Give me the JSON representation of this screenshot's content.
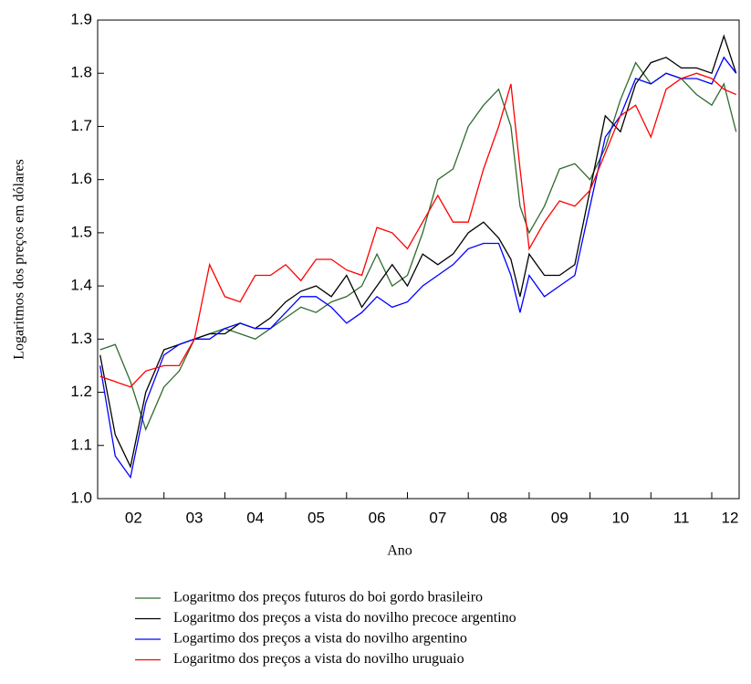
{
  "chart_data": {
    "type": "line",
    "xlabel": "Ano",
    "ylabel": "Logaritmos dos preços em dólares",
    "xlim": [
      1.91,
      12.45
    ],
    "xtick_marks": [
      3,
      4,
      5,
      6,
      7,
      8,
      9,
      10,
      11,
      12
    ],
    "xticks": [
      {
        "value": 2.5,
        "label": "02"
      },
      {
        "value": 3.5,
        "label": "03"
      },
      {
        "value": 4.5,
        "label": "04"
      },
      {
        "value": 5.5,
        "label": "05"
      },
      {
        "value": 6.5,
        "label": "06"
      },
      {
        "value": 7.5,
        "label": "07"
      },
      {
        "value": 8.5,
        "label": "08"
      },
      {
        "value": 9.5,
        "label": "09"
      },
      {
        "value": 10.5,
        "label": "10"
      },
      {
        "value": 11.5,
        "label": "11"
      },
      {
        "value": 12.3,
        "label": "12"
      }
    ],
    "ylim": [
      1,
      1.9
    ],
    "yticks": [
      {
        "value": 1,
        "label": "1.0"
      },
      1.1,
      1.2,
      1.3,
      1.4,
      1.5,
      1.6,
      1.7,
      1.8,
      1.9
    ],
    "x": [
      1.95,
      2.2,
      2.45,
      2.7,
      3.0,
      3.25,
      3.5,
      3.75,
      4.0,
      4.25,
      4.5,
      4.75,
      5.0,
      5.25,
      5.5,
      5.75,
      6.0,
      6.25,
      6.5,
      6.75,
      7.0,
      7.25,
      7.5,
      7.75,
      8.0,
      8.25,
      8.5,
      8.7,
      8.85,
      9.0,
      9.25,
      9.5,
      9.75,
      10.0,
      10.25,
      10.5,
      10.75,
      11.0,
      11.25,
      11.5,
      11.75,
      12.0,
      12.2,
      12.4
    ],
    "series": [
      {
        "name": "Logaritmo dos preços futuros do boi gordo brasileiro",
        "color": "#2e6b2e",
        "values": [
          1.28,
          1.29,
          1.22,
          1.13,
          1.21,
          1.24,
          1.3,
          1.31,
          1.32,
          1.31,
          1.3,
          1.32,
          1.34,
          1.36,
          1.35,
          1.37,
          1.38,
          1.4,
          1.46,
          1.4,
          1.42,
          1.5,
          1.6,
          1.62,
          1.7,
          1.74,
          1.77,
          1.7,
          1.55,
          1.5,
          1.55,
          1.62,
          1.63,
          1.6,
          1.66,
          1.75,
          1.82,
          1.78,
          1.8,
          1.79,
          1.76,
          1.74,
          1.78,
          1.69
        ]
      },
      {
        "name": "Logaritmo dos preços a vista do novilho precoce argentino",
        "color": "#000000",
        "values": [
          1.27,
          1.12,
          1.06,
          1.2,
          1.28,
          1.29,
          1.3,
          1.31,
          1.31,
          1.33,
          1.32,
          1.34,
          1.37,
          1.39,
          1.4,
          1.38,
          1.42,
          1.36,
          1.4,
          1.44,
          1.4,
          1.46,
          1.44,
          1.46,
          1.5,
          1.52,
          1.49,
          1.45,
          1.38,
          1.46,
          1.42,
          1.42,
          1.44,
          1.58,
          1.72,
          1.69,
          1.78,
          1.82,
          1.83,
          1.81,
          1.81,
          1.8,
          1.87,
          1.8
        ]
      },
      {
        "name": "Logartimo dos preços a vista do novilho argentino",
        "color": "#0000ff",
        "values": [
          1.25,
          1.08,
          1.04,
          1.18,
          1.27,
          1.29,
          1.3,
          1.3,
          1.32,
          1.33,
          1.32,
          1.32,
          1.35,
          1.38,
          1.38,
          1.36,
          1.33,
          1.35,
          1.38,
          1.36,
          1.37,
          1.4,
          1.42,
          1.44,
          1.47,
          1.48,
          1.48,
          1.42,
          1.35,
          1.42,
          1.38,
          1.4,
          1.42,
          1.55,
          1.68,
          1.72,
          1.79,
          1.78,
          1.8,
          1.79,
          1.79,
          1.78,
          1.83,
          1.8
        ]
      },
      {
        "name": "Logaritmo dos preços a vista do novilho uruguaio",
        "color": "#ff0000",
        "values": [
          1.23,
          1.22,
          1.21,
          1.24,
          1.25,
          1.25,
          1.3,
          1.44,
          1.38,
          1.37,
          1.42,
          1.42,
          1.44,
          1.41,
          1.45,
          1.45,
          1.43,
          1.42,
          1.51,
          1.5,
          1.47,
          1.52,
          1.57,
          1.52,
          1.52,
          1.62,
          1.7,
          1.78,
          1.62,
          1.47,
          1.52,
          1.56,
          1.55,
          1.58,
          1.65,
          1.72,
          1.74,
          1.68,
          1.77,
          1.79,
          1.8,
          1.79,
          1.77,
          1.76
        ]
      }
    ]
  }
}
